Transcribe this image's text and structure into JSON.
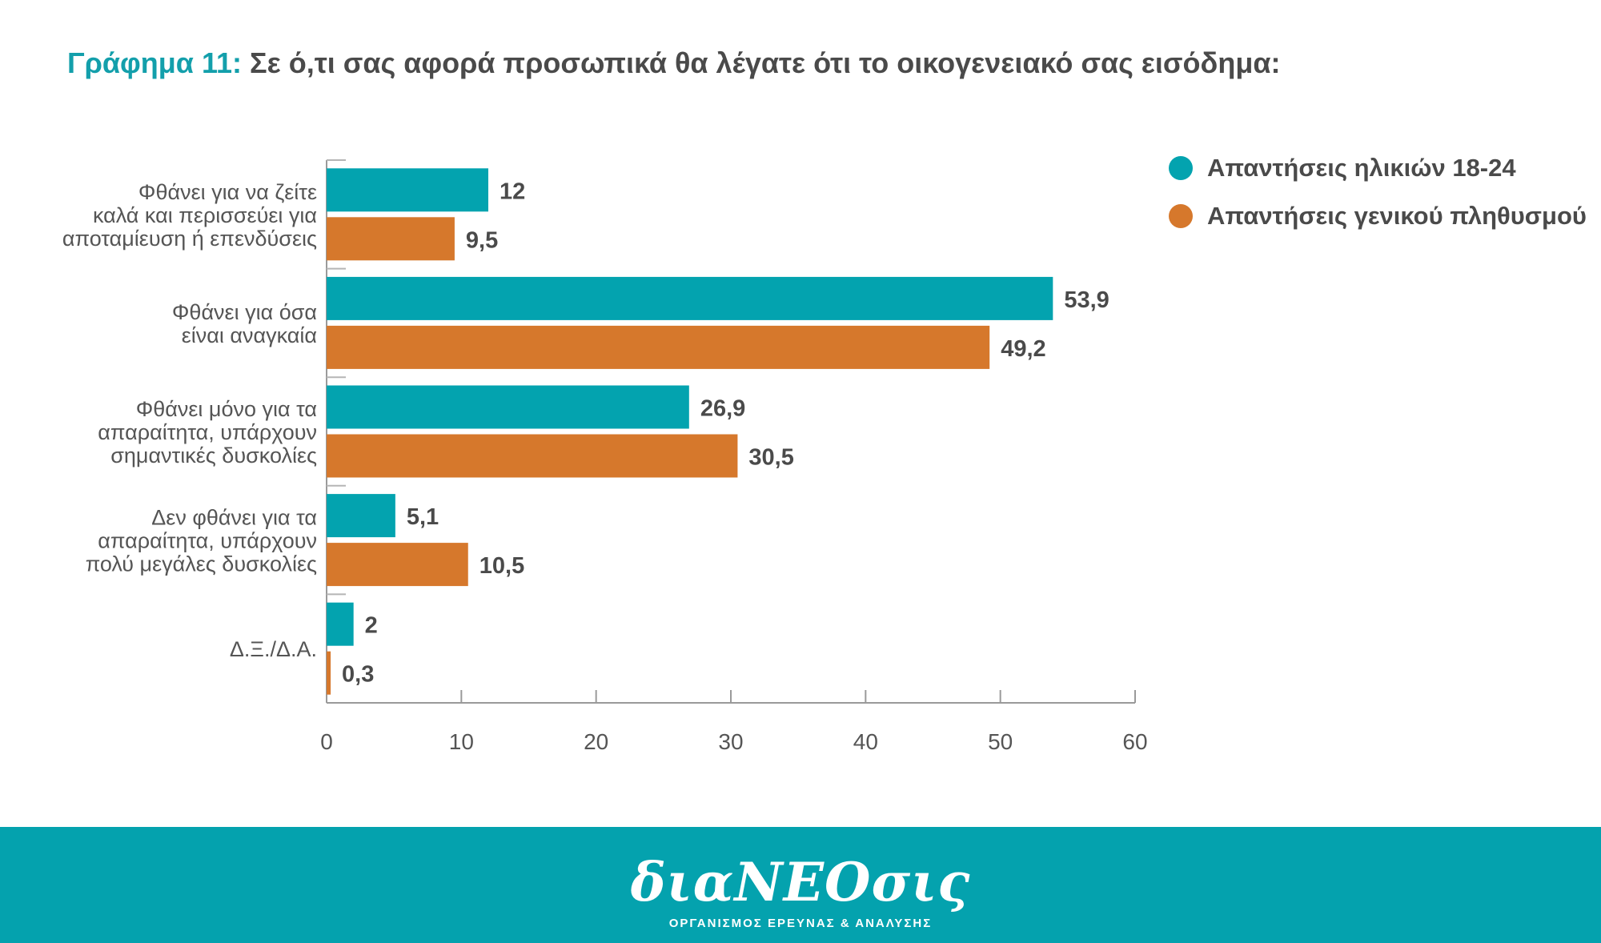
{
  "title": {
    "prefix": "Γράφημα 11:",
    "text": "Σε ό,τι σας αφορά προσωπικά θα λέγατε ότι το οικογενειακό σας εισόδημα:"
  },
  "colors": {
    "teal": "#03a3af",
    "orange": "#d6782c",
    "footer": "#04a2ae"
  },
  "chart_data": {
    "type": "bar",
    "orientation": "horizontal",
    "categories": [
      [
        "Φθάνει για να ζείτε",
        "καλά και περισσεύει για",
        "αποταμίευση ή επενδύσεις"
      ],
      [
        "Φθάνει για όσα",
        "είναι αναγκαία"
      ],
      [
        "Φθάνει μόνο για τα",
        "απαραίτητα, υπάρχουν",
        "σημαντικές δυσκολίες"
      ],
      [
        "Δεν φθάνει για τα",
        "απαραίτητα, υπάρχουν",
        "πολύ μεγάλες δυσκολίες"
      ],
      [
        "Δ.Ξ./Δ.Α."
      ]
    ],
    "series": [
      {
        "name": "Απαντήσεις ηλικιών 18-24",
        "color": "#03a3af",
        "values": [
          12,
          53.9,
          26.9,
          5.1,
          2
        ],
        "labels": [
          "12",
          "53,9",
          "26,9",
          "5,1",
          "2"
        ]
      },
      {
        "name": "Απαντήσεις γενικού πληθυσμού",
        "color": "#d6782c",
        "values": [
          9.5,
          49.2,
          30.5,
          10.5,
          0.3
        ],
        "labels": [
          "9,5",
          "49,2",
          "30,5",
          "10,5",
          "0,3"
        ]
      }
    ],
    "xlim": [
      0,
      60
    ],
    "xticks": [
      0,
      10,
      20,
      30,
      40,
      50,
      60
    ],
    "grid": false,
    "legend_position": "top-right"
  },
  "footer": {
    "logo": "διαΝΕΟσις",
    "subtitle": "ΟΡΓΑΝΙΣΜΟΣ ΕΡΕΥΝΑΣ & ΑΝΑΛΥΣΗΣ"
  }
}
